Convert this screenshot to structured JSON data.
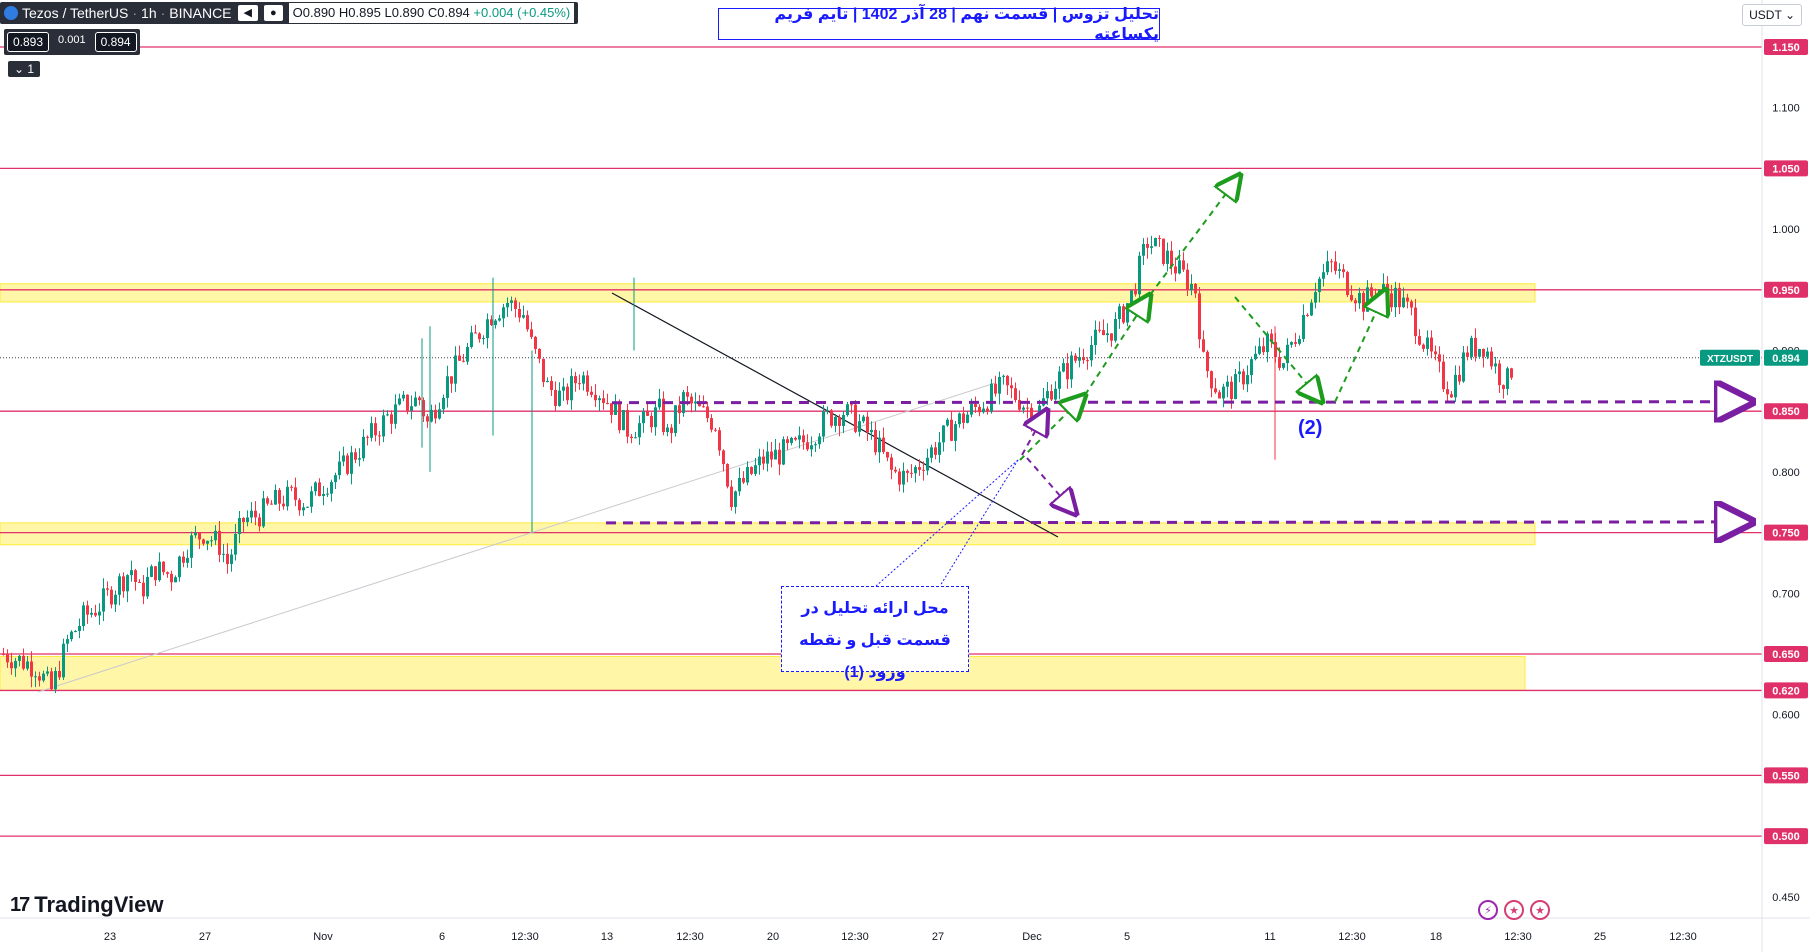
{
  "header": {
    "symbol": "Tezos / TetherUS",
    "interval": "1h",
    "exchange": "BINANCE",
    "ohlc": {
      "o": "O0.890",
      "h": "H0.895",
      "l": "L0.890",
      "c": "C0.894",
      "chg": "+0.004 (+0.45%)"
    },
    "bid": "0.893",
    "spread": "0.001",
    "ask": "0.894",
    "indicator_count": "1"
  },
  "currency_button": "USDT",
  "title_text": "تحلیل تزوس | قسمت نهم | 28 آذر 1402 | تایم فریم یکساعته",
  "annotation": {
    "line1": "محل ارائه تحلیل در",
    "line2": "قسمت قبل و نقطه ورود (1)"
  },
  "label_2": "(2)",
  "brand": "TradingView",
  "symbol_tag": "XTZUSDT",
  "colors": {
    "level_line": "#e0306a",
    "zone_fill": "#ffeb3b",
    "dashed_level": "#7b1fa2",
    "arrow_green": "#1e9c1e",
    "up": "#089981",
    "down": "#f23645",
    "annot": "#1a1aff"
  },
  "chart_data": {
    "type": "candlestick",
    "current_price": 0.894,
    "y_ticks": [
      "1.100",
      "1.000",
      "0.900",
      "0.800",
      "0.700",
      "0.600",
      "0.450"
    ],
    "levels": [
      {
        "value": 1.15,
        "label": "1.150"
      },
      {
        "value": 1.05,
        "label": "1.050"
      },
      {
        "value": 0.95,
        "label": "0.950"
      },
      {
        "value": 0.85,
        "label": "0.850"
      },
      {
        "value": 0.75,
        "label": "0.750"
      },
      {
        "value": 0.65,
        "label": "0.650"
      },
      {
        "value": 0.62,
        "label": "0.620"
      },
      {
        "value": 0.55,
        "label": "0.550"
      },
      {
        "value": 0.5,
        "label": "0.500"
      }
    ],
    "zones": [
      {
        "from": 0.94,
        "to": 0.955
      },
      {
        "from": 0.74,
        "to": 0.758
      },
      {
        "from": 0.62,
        "to": 0.648
      }
    ],
    "dashed_levels": [
      0.857,
      0.758
    ],
    "x_ticks": [
      "23",
      "27",
      "Nov",
      "6",
      "12:30",
      "13",
      "12:30",
      "20",
      "12:30",
      "27",
      "Dec",
      "5",
      "11",
      "12:30",
      "18",
      "12:30",
      "25",
      "12:30"
    ],
    "path": [
      [
        0,
        0.65
      ],
      [
        8,
        0.64
      ],
      [
        12,
        0.62
      ],
      [
        16,
        0.66
      ],
      [
        20,
        0.68
      ],
      [
        24,
        0.69
      ],
      [
        28,
        0.705
      ],
      [
        32,
        0.72
      ],
      [
        34,
        0.7
      ],
      [
        38,
        0.72
      ],
      [
        42,
        0.715
      ],
      [
        46,
        0.74
      ],
      [
        50,
        0.75
      ],
      [
        54,
        0.74
      ],
      [
        56,
        0.725
      ],
      [
        60,
        0.76
      ],
      [
        64,
        0.765
      ],
      [
        68,
        0.775
      ],
      [
        72,
        0.78
      ],
      [
        76,
        0.775
      ],
      [
        80,
        0.79
      ],
      [
        84,
        0.8
      ],
      [
        88,
        0.815
      ],
      [
        92,
        0.83
      ],
      [
        96,
        0.845
      ],
      [
        100,
        0.855
      ],
      [
        104,
        0.86
      ],
      [
        106,
        0.84
      ],
      [
        110,
        0.87
      ],
      [
        114,
        0.89
      ],
      [
        118,
        0.91
      ],
      [
        122,
        0.93
      ],
      [
        126,
        0.94
      ],
      [
        130,
        0.93
      ],
      [
        132,
        0.905
      ],
      [
        136,
        0.87
      ],
      [
        140,
        0.86
      ],
      [
        144,
        0.88
      ],
      [
        148,
        0.87
      ],
      [
        152,
        0.855
      ],
      [
        156,
        0.835
      ],
      [
        160,
        0.84
      ],
      [
        164,
        0.85
      ],
      [
        166,
        0.83
      ],
      [
        170,
        0.86
      ],
      [
        174,
        0.85
      ],
      [
        178,
        0.84
      ],
      [
        182,
        0.78
      ],
      [
        186,
        0.795
      ],
      [
        190,
        0.81
      ],
      [
        194,
        0.815
      ],
      [
        198,
        0.82
      ],
      [
        202,
        0.83
      ],
      [
        206,
        0.845
      ],
      [
        210,
        0.85
      ],
      [
        214,
        0.84
      ],
      [
        218,
        0.825
      ],
      [
        222,
        0.8
      ],
      [
        226,
        0.795
      ],
      [
        230,
        0.81
      ],
      [
        234,
        0.825
      ],
      [
        238,
        0.84
      ],
      [
        242,
        0.85
      ],
      [
        246,
        0.86
      ],
      [
        250,
        0.87
      ],
      [
        254,
        0.86
      ],
      [
        258,
        0.845
      ],
      [
        262,
        0.87
      ],
      [
        266,
        0.885
      ],
      [
        270,
        0.9
      ],
      [
        274,
        0.91
      ],
      [
        278,
        0.92
      ],
      [
        282,
        0.945
      ],
      [
        286,
        0.99
      ],
      [
        290,
        0.98
      ],
      [
        294,
        0.965
      ],
      [
        298,
        0.95
      ],
      [
        300,
        0.89
      ],
      [
        304,
        0.865
      ],
      [
        308,
        0.87
      ],
      [
        312,
        0.89
      ],
      [
        316,
        0.905
      ],
      [
        320,
        0.89
      ],
      [
        324,
        0.92
      ],
      [
        328,
        0.955
      ],
      [
        332,
        0.97
      ],
      [
        336,
        0.955
      ],
      [
        340,
        0.94
      ],
      [
        344,
        0.95
      ],
      [
        348,
        0.945
      ],
      [
        352,
        0.93
      ],
      [
        356,
        0.9
      ],
      [
        360,
        0.875
      ],
      [
        362,
        0.87
      ],
      [
        366,
        0.9
      ],
      [
        370,
        0.905
      ],
      [
        374,
        0.88
      ],
      [
        376,
        0.875
      ],
      [
        378,
        0.894
      ]
    ]
  }
}
